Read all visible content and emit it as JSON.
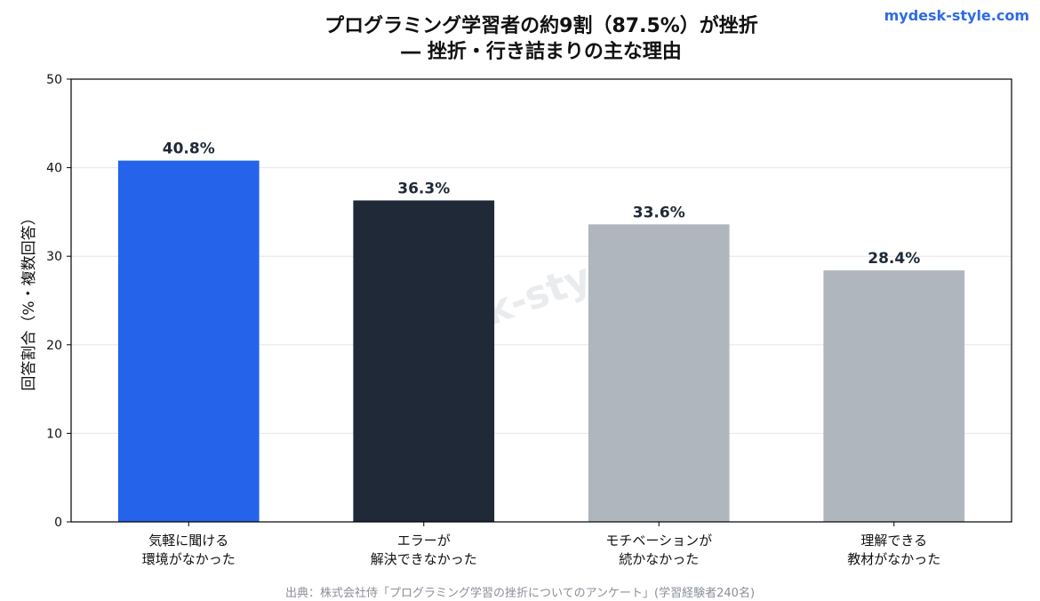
{
  "brand": "mydesk-style.com",
  "title_line1": "プログラミング学習者の約9割（87.5%）が挫折",
  "title_line2": "― 挫折・行き詰まりの主な理由",
  "watermark": "k-sty",
  "source": "出典：株式会社侍「プログラミング学習の挫折についてのアンケート」(学習経験者240名)",
  "colors": {
    "highlight": "#2563eb",
    "dark": "#1f2937",
    "muted": "#b0b6be",
    "value_label": "#1f2937",
    "grid": "#e6e6e6",
    "axis": "#000000"
  },
  "chart_data": {
    "type": "bar",
    "categories": [
      [
        "気軽に聞ける",
        "環境がなかった"
      ],
      [
        "エラーが",
        "解決できなかった"
      ],
      [
        "モチベーションが",
        "続かなかった"
      ],
      [
        "理解できる",
        "教材がなかった"
      ]
    ],
    "values": [
      40.8,
      36.3,
      33.6,
      28.4
    ],
    "value_labels": [
      "40.8%",
      "36.3%",
      "33.6%",
      "28.4%"
    ],
    "bar_colors": [
      "#2563eb",
      "#1f2937",
      "#b0b6be",
      "#b0b6be"
    ],
    "title": "プログラミング学習者の約9割（87.5%）が挫折 ― 挫折・行き詰まりの主な理由",
    "xlabel": "",
    "ylabel": "回答割合（%・複数回答）",
    "ylim": [
      0,
      50
    ],
    "yticks": [
      0,
      10,
      20,
      30,
      40,
      50
    ],
    "grid": true,
    "legend": "none"
  }
}
